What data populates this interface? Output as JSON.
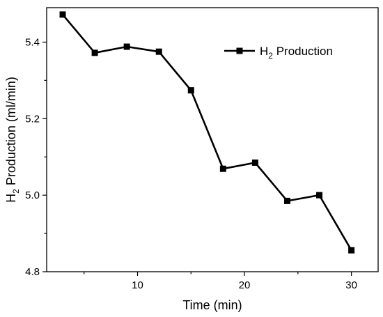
{
  "chart_data": {
    "type": "line",
    "xlabel": "Time (min)",
    "ylabel": {
      "prefix": "H",
      "subscript": "2",
      "suffix": " Production (ml/min)"
    },
    "x_ticks": [
      10,
      20,
      30
    ],
    "y_ticks": [
      "4.8",
      "5.0",
      "5.2",
      "5.4"
    ],
    "xlim": [
      1.5,
      32.5
    ],
    "ylim": [
      4.8,
      5.49
    ],
    "grid": false,
    "legend_position": "top-right",
    "series": [
      {
        "name": {
          "prefix": "H",
          "subscript": "2",
          "suffix": " Production"
        },
        "color": "#000000",
        "marker": "square",
        "x": [
          3,
          6,
          9,
          12,
          15,
          18,
          21,
          24,
          27,
          30
        ],
        "y": [
          5.472,
          5.372,
          5.388,
          5.375,
          5.274,
          5.069,
          5.085,
          4.985,
          5.0,
          4.856
        ]
      }
    ]
  }
}
